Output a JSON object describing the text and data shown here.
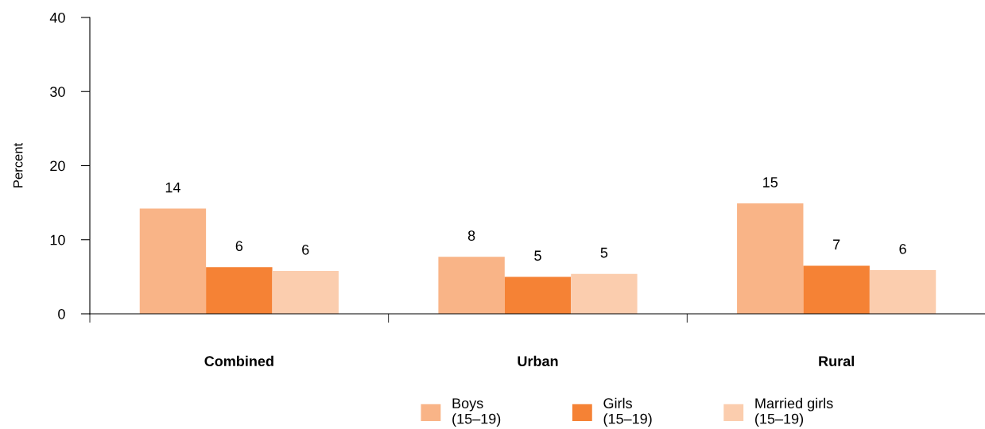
{
  "chart_data": {
    "type": "bar",
    "ylabel": "Percent",
    "categories": [
      "Combined",
      "Urban",
      "Rural"
    ],
    "series": [
      {
        "name": "Boys\n(15–19)",
        "color": "#f9b487",
        "values": [
          14.2,
          7.7,
          14.9
        ],
        "value_labels": [
          "14",
          "8",
          "15"
        ]
      },
      {
        "name": "Girls\n(15–19)",
        "color": "#f58235",
        "values": [
          6.3,
          5.0,
          6.5
        ],
        "value_labels": [
          "6",
          "5",
          "7"
        ]
      },
      {
        "name": "Married girls\n(15–19)",
        "color": "#fbcdae",
        "values": [
          5.8,
          5.4,
          5.9
        ],
        "value_labels": [
          "6",
          "5",
          "6"
        ]
      }
    ],
    "ylim": [
      0,
      40
    ],
    "yticks": [
      0,
      10,
      20,
      30,
      40
    ],
    "grid": false,
    "legend": "bottom"
  }
}
